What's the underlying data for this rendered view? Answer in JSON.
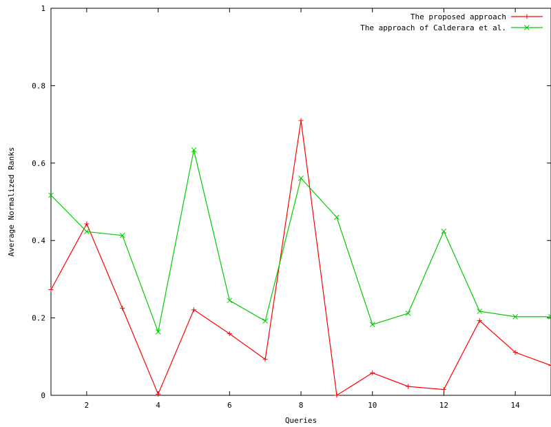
{
  "chart_data": {
    "type": "line",
    "title": "",
    "xlabel": "Queries",
    "ylabel": "Average Normalized Ranks",
    "xlim": [
      1,
      15
    ],
    "ylim": [
      0,
      1
    ],
    "x_ticks": [
      2,
      4,
      6,
      8,
      10,
      12,
      14
    ],
    "x_tick_labels": [
      "2",
      "4",
      "6",
      "8",
      "10",
      "12",
      "14"
    ],
    "y_ticks": [
      0,
      0.2,
      0.4,
      0.6,
      0.8,
      1
    ],
    "y_tick_labels": [
      "0",
      "0.2",
      "0.4",
      "0.6",
      "0.8",
      "1"
    ],
    "grid": false,
    "legend_position": "top-right",
    "x": [
      1,
      2,
      3,
      4,
      5,
      6,
      7,
      8,
      9,
      10,
      11,
      12,
      13,
      14,
      15
    ],
    "series": [
      {
        "name": "The proposed approach",
        "color": "#ff0000",
        "marker": "plus",
        "values": [
          0.273,
          0.443,
          0.225,
          0.003,
          0.221,
          0.159,
          0.093,
          0.71,
          0.0,
          0.058,
          0.023,
          0.015,
          0.193,
          0.111,
          0.077
        ]
      },
      {
        "name": "The approach of Calderara et al.",
        "color": "#00cc00",
        "marker": "cross",
        "values": [
          0.517,
          0.423,
          0.413,
          0.164,
          0.634,
          0.245,
          0.192,
          0.561,
          0.46,
          0.183,
          0.212,
          0.424,
          0.217,
          0.203,
          0.203
        ]
      }
    ]
  }
}
